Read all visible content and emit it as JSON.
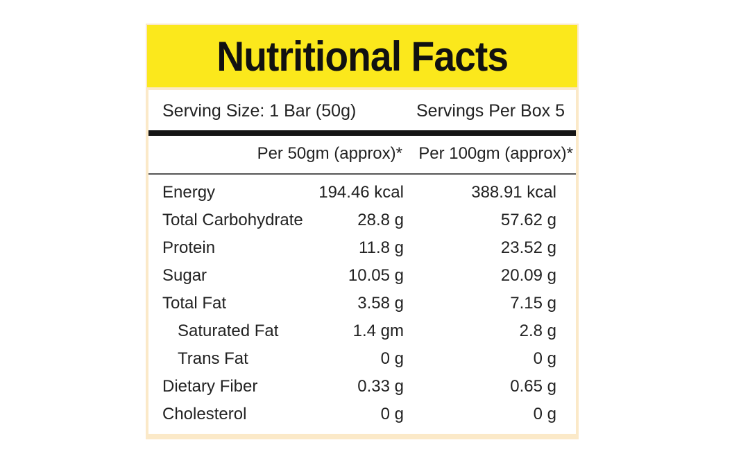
{
  "label": {
    "title": "Nutritional Facts",
    "serving_size": "Serving Size: 1 Bar (50g)",
    "servings_per_box": "Servings Per Box 5",
    "column_headers": {
      "per_50": "Per 50gm (approx)*",
      "per_100": "Per 100gm (approx)*"
    },
    "nutrients": [
      {
        "name": "Energy",
        "per_50": "194.46 kcal",
        "per_100": "388.91 kcal"
      },
      {
        "name": "Total Carbohydrate",
        "per_50": "28.8 g",
        "per_100": "57.62 g"
      },
      {
        "name": "Protein",
        "per_50": "11.8 g",
        "per_100": "23.52 g"
      },
      {
        "name": "Sugar",
        "per_50": "10.05 g",
        "per_100": "20.09 g"
      },
      {
        "name": "Total Fat",
        "per_50": "3.58 g",
        "per_100": "7.15 g"
      },
      {
        "name": "Saturated Fat",
        "per_50": "1.4 gm",
        "per_100": "2.8 g"
      },
      {
        "name": "Trans Fat",
        "per_50": "0 g",
        "per_100": "0 g"
      },
      {
        "name": "Dietary Fiber",
        "per_50": "0.33 g",
        "per_100": "0.65 g"
      },
      {
        "name": "Cholesterol",
        "per_50": "0 g",
        "per_100": "0 g"
      }
    ]
  },
  "colors": {
    "title_band": "#fbe81c",
    "card_border": "#fbe9c8",
    "rule": "#151515"
  }
}
